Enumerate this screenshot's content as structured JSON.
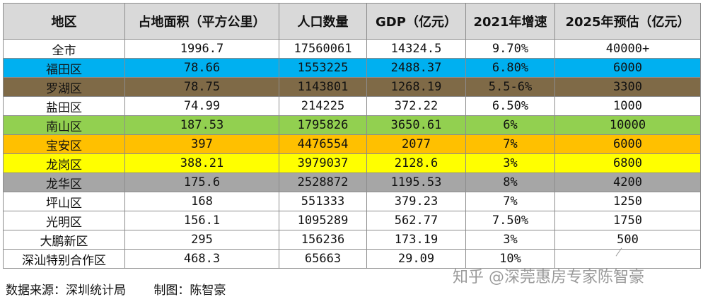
{
  "headers": [
    "地区",
    "占地面积（平方公里）",
    "人口数量",
    "GDP（亿元）",
    "2021年增速",
    "2025年预估（亿元）"
  ],
  "rows": [
    {
      "cells": [
        "全市",
        "1996.7",
        "17560061",
        "14324.5",
        "9.70%",
        "40000+"
      ],
      "color": "#ffffff"
    },
    {
      "cells": [
        "福田区",
        "78.66",
        "1553225",
        "2488.37",
        "6.80%",
        "6000"
      ],
      "color": "#00b0f0"
    },
    {
      "cells": [
        "罗湖区",
        "78.75",
        "1143801",
        "1268.19",
        "5.5-6%",
        "3300"
      ],
      "color": "#7f6a47"
    },
    {
      "cells": [
        "盐田区",
        "74.99",
        "214225",
        "372.22",
        "6.50%",
        "1000"
      ],
      "color": "#ffffff"
    },
    {
      "cells": [
        "南山区",
        "187.53",
        "1795826",
        "3650.61",
        "6%",
        "10000"
      ],
      "color": "#92d050"
    },
    {
      "cells": [
        "宝安区",
        "397",
        "4476554",
        "2077",
        "7%",
        "6000"
      ],
      "color": "#ffc000"
    },
    {
      "cells": [
        "龙岗区",
        "388.21",
        "3979037",
        "2128.6",
        "3%",
        "6800"
      ],
      "color": "#ffff00"
    },
    {
      "cells": [
        "龙华区",
        "175.6",
        "2528872",
        "1195.53",
        "8%",
        "4200"
      ],
      "color": "#a6a6a6"
    },
    {
      "cells": [
        "坪山区",
        "168",
        "551333",
        "379.23",
        "7%",
        "1250"
      ],
      "color": "#ffffff"
    },
    {
      "cells": [
        "光明区",
        "156.1",
        "1095289",
        "562.77",
        "7.50%",
        "1750"
      ],
      "color": "#ffffff"
    },
    {
      "cells": [
        "大鹏新区",
        "295",
        "156236",
        "173.19",
        "3%",
        "500"
      ],
      "color": "#ffffff"
    },
    {
      "cells": [
        "深汕特别合作区",
        "468.3",
        "65663",
        "29.09",
        "10%",
        ""
      ],
      "color": "#ffffff"
    }
  ],
  "footer": {
    "source": "数据来源：深圳统计局",
    "author": "制图：陈智豪"
  },
  "watermark": "知乎 @深莞惠房专家陈智豪"
}
